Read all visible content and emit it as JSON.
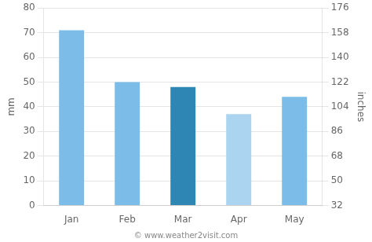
{
  "chart_data": {
    "type": "bar",
    "categories": [
      "Jan",
      "Feb",
      "Mar",
      "Apr",
      "May"
    ],
    "values": [
      71,
      50,
      48,
      37,
      44
    ],
    "colors": [
      "#7bbde8",
      "#7bbde8",
      "#2e86b5",
      "#aad4f0",
      "#7bbde8"
    ],
    "ylabel": "mm",
    "y2label": "inches",
    "ylim": [
      0,
      80
    ],
    "yticks": [
      0,
      10,
      20,
      30,
      40,
      50,
      60,
      70,
      80
    ],
    "y2lim": [
      32,
      176
    ],
    "y2ticks": [
      32,
      50,
      68,
      86,
      104,
      122,
      140,
      158,
      176
    ],
    "grid": true,
    "annotations": [
      "© www.weather2visit.com"
    ]
  }
}
